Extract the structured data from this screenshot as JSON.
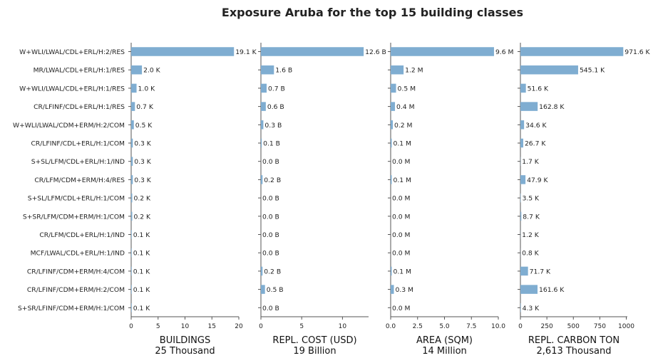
{
  "title": "Exposure Aruba for the top 15 building classes",
  "bar_color": "#7fadd1",
  "chart_data": {
    "type": "bar",
    "orientation": "horizontal",
    "title": "Exposure Aruba for the top 15 building classes",
    "categories": [
      "W+WLI/LWAL/CDL+ERL/H:2/RES",
      "MR/LWAL/CDL+ERL/H:1/RES",
      "W+WLI/LWAL/CDL+ERL/H:1/RES",
      "CR/LFINF/CDL+ERL/H:1/RES",
      "W+WLI/LWAL/CDM+ERM/H:2/COM",
      "CR/LFINF/CDL+ERL/H:1/COM",
      "S+SL/LFM/CDL+ERL/H:1/IND",
      "CR/LFM/CDM+ERM/H:4/RES",
      "S+SL/LFM/CDL+ERL/H:1/COM",
      "S+SR/LFM/CDM+ERM/H:1/COM",
      "CR/LFM/CDL+ERL/H:1/IND",
      "MCF/LWAL/CDL+ERL/H:1/IND",
      "CR/LFINF/CDM+ERM/H:4/COM",
      "CR/LFINF/CDM+ERM/H:2/COM",
      "S+SR/LFINF/CDM+ERM/H:1/COM"
    ],
    "panels": [
      {
        "xlabel": "BUILDINGS",
        "total": "25 Thousand",
        "xlim": [
          0,
          20
        ],
        "ticks": [
          0,
          5,
          10,
          15,
          20
        ],
        "tick_labels": [
          "0",
          "5",
          "10",
          "15",
          "20"
        ],
        "values": [
          19.1,
          2.0,
          1.0,
          0.7,
          0.5,
          0.3,
          0.3,
          0.3,
          0.2,
          0.2,
          0.1,
          0.1,
          0.1,
          0.1,
          0.1
        ],
        "labels": [
          "19.1 K",
          "2.0 K",
          "1.0 K",
          "0.7 K",
          "0.5 K",
          "0.3 K",
          "0.3 K",
          "0.3 K",
          "0.2 K",
          "0.2 K",
          "0.1 K",
          "0.1 K",
          "0.1 K",
          "0.1 K",
          "0.1 K"
        ]
      },
      {
        "xlabel": "REPL. COST (USD)",
        "total": "19 Billion",
        "xlim": [
          0,
          13.2
        ],
        "ticks": [
          0,
          5,
          10
        ],
        "tick_labels": [
          "0",
          "5",
          "10"
        ],
        "values": [
          12.6,
          1.6,
          0.7,
          0.6,
          0.3,
          0.1,
          0.0,
          0.2,
          0.0,
          0.0,
          0.0,
          0.0,
          0.2,
          0.5,
          0.0
        ],
        "labels": [
          "12.6 B",
          "1.6 B",
          "0.7 B",
          "0.6 B",
          "0.3 B",
          "0.1 B",
          "0.0 B",
          "0.2 B",
          "0.0 B",
          "0.0 B",
          "0.0 B",
          "0.0 B",
          "0.2 B",
          "0.5 B",
          "0.0 B"
        ]
      },
      {
        "xlabel": "AREA (SQM)",
        "total": "14 Million",
        "xlim": [
          0,
          10
        ],
        "ticks": [
          0,
          2.5,
          5,
          7.5,
          10
        ],
        "tick_labels": [
          "0.0",
          "2.5",
          "5.0",
          "7.5",
          "10.0"
        ],
        "values": [
          9.6,
          1.2,
          0.5,
          0.4,
          0.2,
          0.1,
          0.0,
          0.1,
          0.0,
          0.0,
          0.0,
          0.0,
          0.1,
          0.3,
          0.0
        ],
        "labels": [
          "9.6 M",
          "1.2 M",
          "0.5 M",
          "0.4 M",
          "0.2 M",
          "0.1 M",
          "0.0 M",
          "0.1 M",
          "0.0 M",
          "0.0 M",
          "0.0 M",
          "0.0 M",
          "0.1 M",
          "0.3 M",
          "0.0 M"
        ]
      },
      {
        "xlabel": "REPL. CARBON TON",
        "total": "2,613 Thousand",
        "xlim": [
          0,
          1010
        ],
        "ticks": [
          0,
          250,
          500,
          750,
          1000
        ],
        "tick_labels": [
          "0",
          "250",
          "500",
          "750",
          "1000"
        ],
        "values": [
          971.6,
          545.1,
          51.6,
          162.8,
          34.6,
          26.7,
          1.7,
          47.9,
          3.5,
          8.7,
          1.2,
          0.8,
          71.7,
          161.6,
          4.3
        ],
        "labels": [
          "971.6 K",
          "545.1 K",
          "51.6 K",
          "162.8 K",
          "34.6 K",
          "26.7 K",
          "1.7 K",
          "47.9 K",
          "3.5 K",
          "8.7 K",
          "1.2 K",
          "0.8 K",
          "71.7 K",
          "161.6 K",
          "4.3 K"
        ]
      }
    ]
  }
}
